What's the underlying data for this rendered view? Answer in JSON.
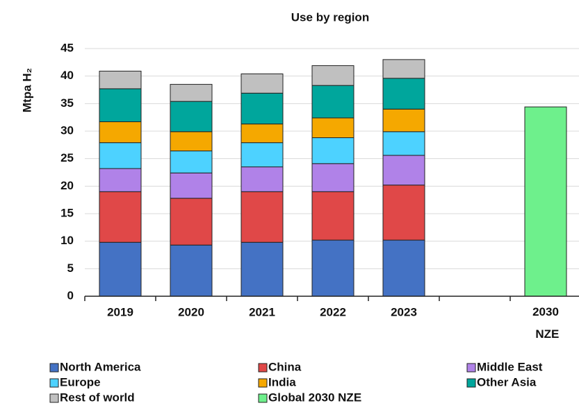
{
  "chart_data": {
    "type": "stacked_bar",
    "title": "Use by region",
    "y_label": "Mtpa H₂",
    "categories": [
      "2019",
      "2020",
      "2021",
      "2022",
      "2023",
      null,
      "2030 NZE"
    ],
    "series": [
      {
        "name": "North America",
        "color": "#4472c4",
        "values": [
          9.8,
          9.3,
          9.8,
          10.2,
          10.2,
          null,
          null
        ]
      },
      {
        "name": "China",
        "color": "#e04848",
        "values": [
          9.2,
          8.5,
          9.2,
          8.8,
          10.0,
          null,
          null
        ]
      },
      {
        "name": "Middle East",
        "color": "#b082e8",
        "values": [
          4.2,
          4.6,
          4.5,
          5.1,
          5.4,
          null,
          null
        ]
      },
      {
        "name": "Europe",
        "color": "#4dd2ff",
        "values": [
          4.7,
          4.0,
          4.4,
          4.7,
          4.3,
          null,
          null
        ]
      },
      {
        "name": "India",
        "color": "#f5a800",
        "values": [
          3.8,
          3.5,
          3.4,
          3.6,
          4.1,
          null,
          null
        ]
      },
      {
        "name": "Other Asia",
        "color": "#00a69c",
        "values": [
          6.0,
          5.5,
          5.6,
          5.9,
          5.6,
          null,
          null
        ]
      },
      {
        "name": "Rest of world",
        "color": "#c0c0c0",
        "values": [
          3.2,
          3.1,
          3.5,
          3.6,
          3.4,
          null,
          null
        ]
      },
      {
        "name": "Global 2030 NZE",
        "color": "#6ef08c",
        "values": [
          null,
          null,
          null,
          null,
          null,
          null,
          34.4
        ]
      }
    ],
    "ylim": [
      0,
      45
    ],
    "yticks": [
      0,
      5,
      10,
      15,
      20,
      25,
      30,
      35,
      40,
      45
    ],
    "grid": true
  }
}
